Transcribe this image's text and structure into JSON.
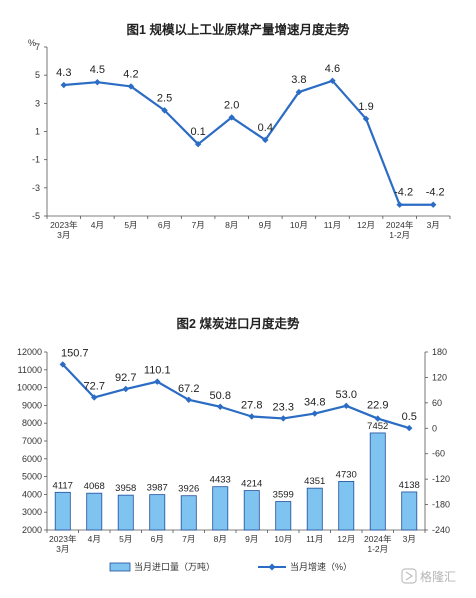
{
  "chart_data": [
    {
      "type": "line",
      "title": "图1 规模以上工业原煤产量增速月度走势",
      "ylabel": "%",
      "ylim": [
        -5,
        7
      ],
      "yticks": [
        "7",
        "5",
        "3",
        "1",
        "-1",
        "-3",
        "-5"
      ],
      "categories": [
        "2023年 3月",
        "4月",
        "5月",
        "6月",
        "7月",
        "8月",
        "9月",
        "10月",
        "11月",
        "12月",
        "2024年 1-2月",
        "3月"
      ],
      "series": [
        {
          "values": [
            4.3,
            4.5,
            4.2,
            2.5,
            0.1,
            2.0,
            0.4,
            3.8,
            4.6,
            1.9,
            -4.2,
            -4.2
          ],
          "labels": [
            "4.3",
            "4.5",
            "4.2",
            "2.5",
            "0.1",
            "2.0",
            "0.4",
            "3.8",
            "4.6",
            "1.9",
            "-4.2",
            "-4.2"
          ]
        }
      ],
      "line_color": "#2b6cc4",
      "grid": false
    },
    {
      "type": "bar+line",
      "title": "图2 煤炭进口月度走势",
      "categories": [
        "2023年 3月",
        "4月",
        "5月",
        "6月",
        "7月",
        "8月",
        "9月",
        "10月",
        "11月",
        "12月",
        "2024年 1-2月",
        "3月"
      ],
      "left_ylim": [
        2000,
        12000
      ],
      "left_yticks": [
        "12000",
        "11000",
        "10000",
        "9000",
        "8000",
        "7000",
        "6000",
        "5000",
        "4000",
        "3000",
        "2000"
      ],
      "right_ylim": [
        -240,
        180
      ],
      "right_yticks": [
        "180",
        "120",
        "60",
        "0",
        "-60",
        "-120",
        "-180",
        "-240"
      ],
      "series": [
        {
          "name": "当月进口量（万吨）",
          "type": "bar",
          "axis": "left",
          "values": [
            4117,
            4068,
            3958,
            3987,
            3926,
            4433,
            4214,
            3599,
            4351,
            4730,
            7452,
            4138
          ],
          "labels": [
            "4117",
            "4068",
            "3958",
            "3987",
            "3926",
            "4433",
            "4214",
            "3599",
            "4351",
            "4730",
            "7452",
            "4138"
          ]
        },
        {
          "name": "当月增速（%）",
          "type": "line",
          "axis": "right",
          "values": [
            150.7,
            72.7,
            92.7,
            110.1,
            67.2,
            50.8,
            27.8,
            23.3,
            34.8,
            53.0,
            22.9,
            0.5
          ],
          "labels": [
            "150.7",
            "72.7",
            "92.7",
            "110.1",
            "67.2",
            "50.8",
            "27.8",
            "23.3",
            "34.8",
            "53.0",
            "22.9",
            "0.5"
          ]
        }
      ],
      "bar_fill": "#7fc3f0",
      "bar_stroke": "#1f4e9a",
      "line_color": "#2b6cc4",
      "legend": "bottom",
      "grid": false
    }
  ],
  "watermark": "格隆汇"
}
